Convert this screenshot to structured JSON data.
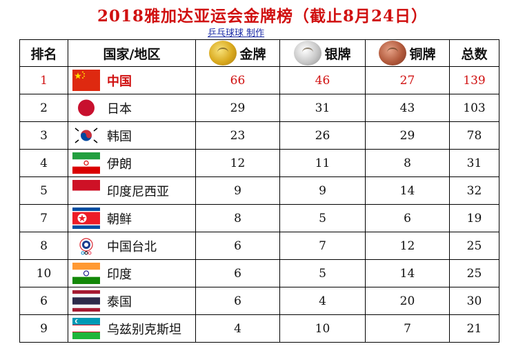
{
  "title": "2018雅加达亚运会金牌榜（截止8月24日）",
  "credit": "乒乓球球 制作",
  "headers": {
    "rank": "排名",
    "country": "国家/地区",
    "gold": "金牌",
    "silver": "银牌",
    "bronze": "铜牌",
    "total": "总数"
  },
  "colors": {
    "title": "#d01010",
    "highlight": "#d01010",
    "credit": "#1a2aa6"
  },
  "rows": [
    {
      "rank": "1",
      "country": "中国",
      "flag": "china-flag-icon",
      "gold": "66",
      "silver": "46",
      "bronze": "27",
      "total": "139"
    },
    {
      "rank": "2",
      "country": "日本",
      "flag": "japan-flag-icon",
      "gold": "29",
      "silver": "31",
      "bronze": "43",
      "total": "103"
    },
    {
      "rank": "3",
      "country": "韩国",
      "flag": "korea-flag-icon",
      "gold": "23",
      "silver": "26",
      "bronze": "29",
      "total": "78"
    },
    {
      "rank": "4",
      "country": "伊朗",
      "flag": "iran-flag-icon",
      "gold": "12",
      "silver": "11",
      "bronze": "8",
      "total": "31"
    },
    {
      "rank": "5",
      "country": "印度尼西亚",
      "flag": "indonesia-flag-icon",
      "gold": "9",
      "silver": "9",
      "bronze": "14",
      "total": "32"
    },
    {
      "rank": "7",
      "country": "朝鲜",
      "flag": "north-korea-flag-icon",
      "gold": "8",
      "silver": "5",
      "bronze": "6",
      "total": "19"
    },
    {
      "rank": "8",
      "country": "中国台北",
      "flag": "chinese-taipei-flag-icon",
      "gold": "6",
      "silver": "7",
      "bronze": "12",
      "total": "25"
    },
    {
      "rank": "10",
      "country": "印度",
      "flag": "india-flag-icon",
      "gold": "6",
      "silver": "5",
      "bronze": "14",
      "total": "25"
    },
    {
      "rank": "6",
      "country": "泰国",
      "flag": "thailand-flag-icon",
      "gold": "6",
      "silver": "4",
      "bronze": "20",
      "total": "30"
    },
    {
      "rank": "9",
      "country": "乌兹别克斯坦",
      "flag": "uzbekistan-flag-icon",
      "gold": "4",
      "silver": "10",
      "bronze": "7",
      "total": "21"
    }
  ]
}
